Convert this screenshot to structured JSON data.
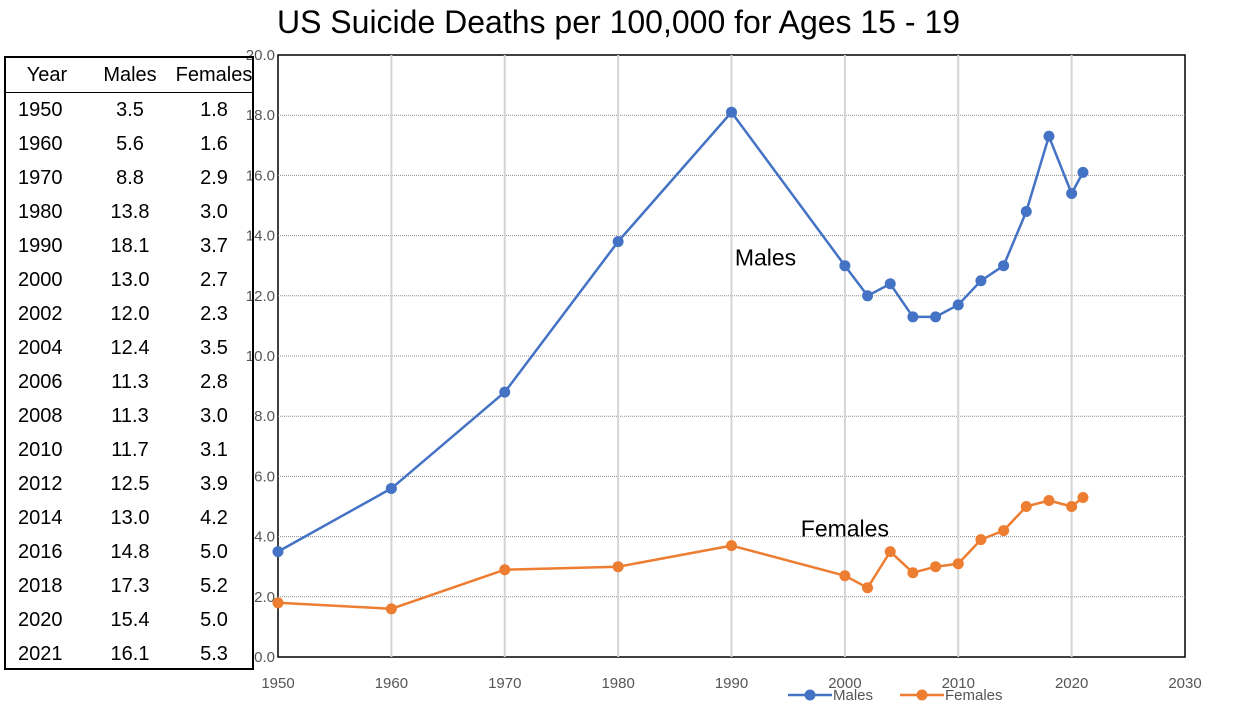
{
  "chart_data": {
    "type": "line",
    "title": "US Suicide Deaths per 100,000 for Ages 15 - 19",
    "xlabel": "",
    "ylabel": "",
    "xlim": [
      1950,
      2030
    ],
    "ylim": [
      0,
      20
    ],
    "x_ticks": [
      "1950",
      "1960",
      "1970",
      "1980",
      "1990",
      "2000",
      "2010",
      "2020",
      "2030"
    ],
    "y_ticks": [
      "0.0",
      "2.0",
      "4.0",
      "6.0",
      "8.0",
      "10.0",
      "12.0",
      "14.0",
      "16.0",
      "18.0",
      "20.0"
    ],
    "grid": true,
    "legend_position": "bottom",
    "x": [
      1950,
      1960,
      1970,
      1980,
      1990,
      2000,
      2002,
      2004,
      2006,
      2008,
      2010,
      2012,
      2014,
      2016,
      2018,
      2020,
      2021
    ],
    "series": [
      {
        "name": "Males",
        "color": "#4472C4",
        "values": [
          3.5,
          5.6,
          8.8,
          13.8,
          18.1,
          13.0,
          12.0,
          12.4,
          11.3,
          11.3,
          11.7,
          12.5,
          13.0,
          14.8,
          17.3,
          15.4,
          16.1
        ]
      },
      {
        "name": "Females",
        "color": "#ED7D31",
        "values": [
          1.8,
          1.6,
          2.9,
          3.0,
          3.7,
          2.7,
          2.3,
          3.5,
          2.8,
          3.0,
          3.1,
          3.9,
          4.2,
          5.0,
          5.2,
          5.0,
          5.3
        ]
      }
    ],
    "annotations": [
      {
        "text": "Males",
        "x": 1993,
        "y": 13.0
      },
      {
        "text": "Females",
        "x": 2000,
        "y": 4.0
      }
    ]
  },
  "table": {
    "headers": [
      "Year",
      "Males",
      "Females"
    ],
    "rows": [
      [
        "1950",
        "3.5",
        "1.8"
      ],
      [
        "1960",
        "5.6",
        "1.6"
      ],
      [
        "1970",
        "8.8",
        "2.9"
      ],
      [
        "1980",
        "13.8",
        "3.0"
      ],
      [
        "1990",
        "18.1",
        "3.7"
      ],
      [
        "2000",
        "13.0",
        "2.7"
      ],
      [
        "2002",
        "12.0",
        "2.3"
      ],
      [
        "2004",
        "12.4",
        "3.5"
      ],
      [
        "2006",
        "11.3",
        "2.8"
      ],
      [
        "2008",
        "11.3",
        "3.0"
      ],
      [
        "2010",
        "11.7",
        "3.1"
      ],
      [
        "2012",
        "12.5",
        "3.9"
      ],
      [
        "2014",
        "13.0",
        "4.2"
      ],
      [
        "2016",
        "14.8",
        "5.0"
      ],
      [
        "2018",
        "17.3",
        "5.2"
      ],
      [
        "2020",
        "15.4",
        "5.0"
      ],
      [
        "2021",
        "16.1",
        "5.3"
      ]
    ]
  }
}
